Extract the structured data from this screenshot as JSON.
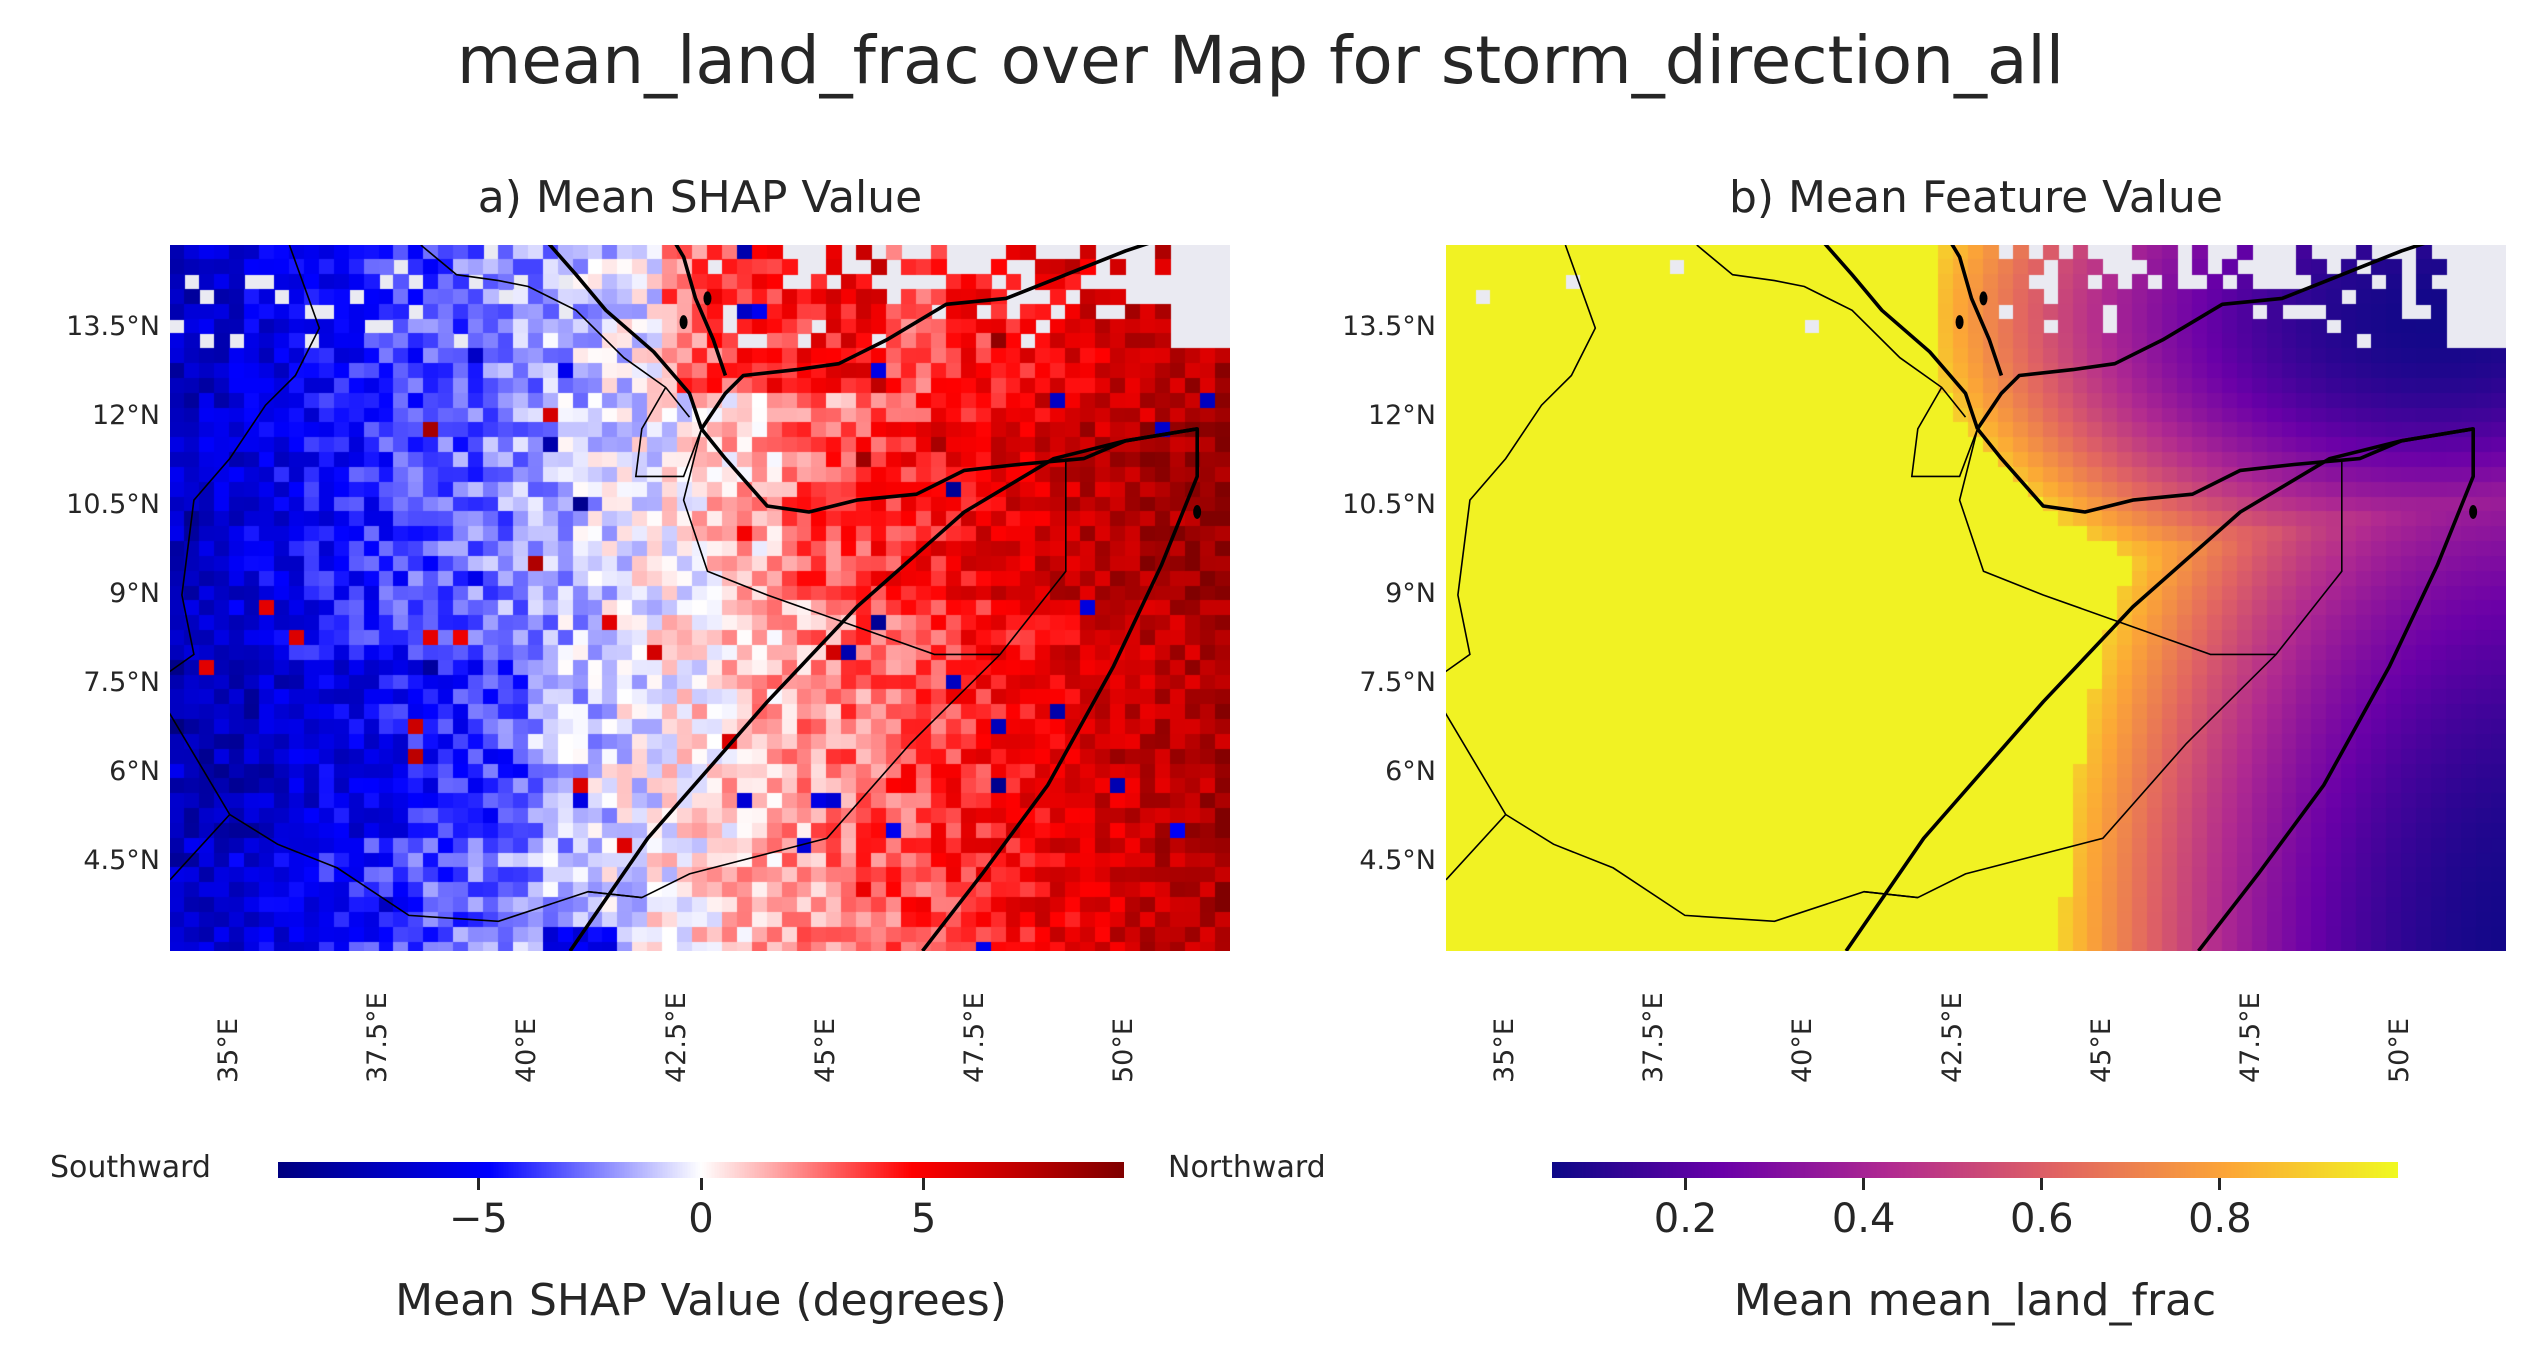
{
  "title": "mean_land_frac over Map for storm_direction_all",
  "panels": [
    {
      "title": "a) Mean SHAP Value",
      "colormap": "bwr",
      "colorbar": {
        "label": "Mean SHAP Value (degrees)",
        "ticks": [
          "−5",
          "0",
          "5"
        ],
        "tick_values": [
          -5,
          0,
          5
        ],
        "range": [
          -9.5,
          9.5
        ],
        "left_end_label": "Southward",
        "right_end_label": "Northward",
        "colors": [
          "#000080",
          "#0000ff",
          "#ffffff",
          "#ff0000",
          "#800000"
        ]
      }
    },
    {
      "title": "b) Mean Feature Value",
      "colormap": "plasma",
      "colorbar": {
        "label": "Mean mean_land_frac",
        "ticks": [
          "0.2",
          "0.4",
          "0.6",
          "0.8"
        ],
        "tick_values": [
          0.2,
          0.4,
          0.6,
          0.8
        ],
        "range": [
          0.05,
          1.0
        ],
        "colors": [
          "#0d0887",
          "#6a00a8",
          "#b12a90",
          "#e16462",
          "#fca636",
          "#f0f921"
        ]
      }
    }
  ],
  "map": {
    "lon_range": [
      34.0,
      51.75
    ],
    "lat_range": [
      3.0,
      14.9
    ],
    "lon_ticks": [
      "35°E",
      "37.5°E",
      "40°E",
      "42.5°E",
      "45°E",
      "47.5°E",
      "50°E"
    ],
    "lon_tick_values": [
      35,
      37.5,
      40,
      42.5,
      45,
      47.5,
      50
    ],
    "lat_ticks": [
      "13.5°N",
      "12°N",
      "10.5°N",
      "9°N",
      "7.5°N",
      "6°N",
      "4.5°N"
    ],
    "lat_tick_values": [
      13.5,
      12,
      10.5,
      9,
      7.5,
      6,
      4.5
    ],
    "missing_color": "#eaeaf2",
    "coast_color": "#000000"
  }
}
